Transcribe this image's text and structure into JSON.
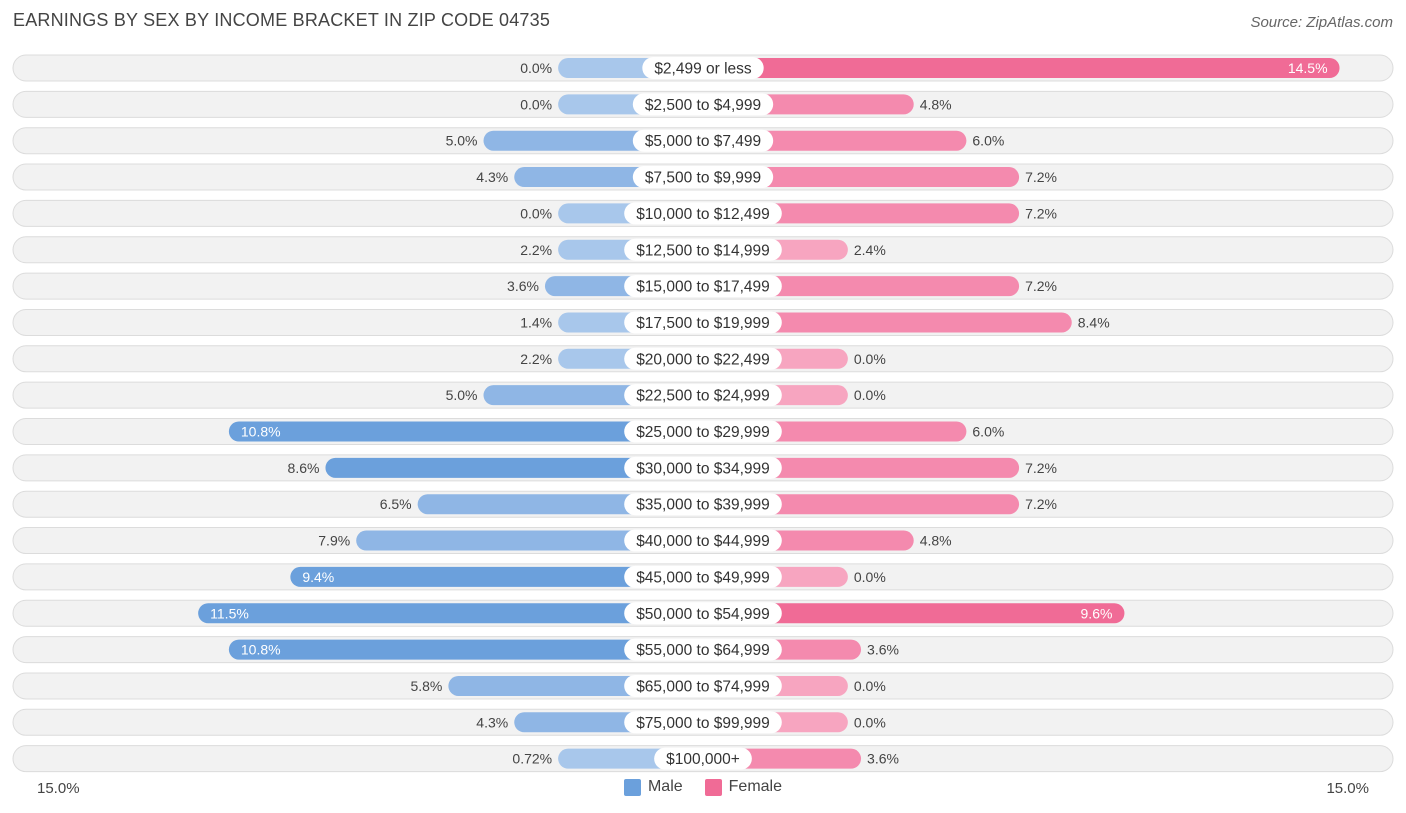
{
  "title": "EARNINGS BY SEX BY INCOME BRACKET IN ZIP CODE 04735",
  "source": "Source: ZipAtlas.com",
  "colors": {
    "male": "#6ba0dc",
    "male_light": "#a8c7eb",
    "female": "#f06b96",
    "female_light": "#f7a5c0"
  },
  "chart_data": {
    "type": "bar",
    "orientation": "horizontal-diverging",
    "categories": [
      "$2,499 or less",
      "$2,500 to $4,999",
      "$5,000 to $7,499",
      "$7,500 to $9,999",
      "$10,000 to $12,499",
      "$12,500 to $14,999",
      "$15,000 to $17,499",
      "$17,500 to $19,999",
      "$20,000 to $22,499",
      "$22,500 to $24,999",
      "$25,000 to $29,999",
      "$30,000 to $34,999",
      "$35,000 to $39,999",
      "$40,000 to $44,999",
      "$45,000 to $49,999",
      "$50,000 to $54,999",
      "$55,000 to $64,999",
      "$65,000 to $74,999",
      "$75,000 to $99,999",
      "$100,000+"
    ],
    "series": [
      {
        "name": "Male",
        "values": [
          0.0,
          0.0,
          5.0,
          4.3,
          0.0,
          2.2,
          3.6,
          1.4,
          2.2,
          5.0,
          10.8,
          8.6,
          6.5,
          7.9,
          9.4,
          11.5,
          10.8,
          5.8,
          4.3,
          0.72
        ],
        "labels": [
          "0.0%",
          "0.0%",
          "5.0%",
          "4.3%",
          "0.0%",
          "2.2%",
          "3.6%",
          "1.4%",
          "2.2%",
          "5.0%",
          "10.8%",
          "8.6%",
          "6.5%",
          "7.9%",
          "9.4%",
          "11.5%",
          "10.8%",
          "5.8%",
          "4.3%",
          "0.72%"
        ]
      },
      {
        "name": "Female",
        "values": [
          14.5,
          4.8,
          6.0,
          7.2,
          7.2,
          2.4,
          7.2,
          8.4,
          0.0,
          0.0,
          6.0,
          7.2,
          7.2,
          4.8,
          0.0,
          9.6,
          3.6,
          0.0,
          0.0,
          3.6
        ],
        "labels": [
          "14.5%",
          "4.8%",
          "6.0%",
          "7.2%",
          "7.2%",
          "2.4%",
          "7.2%",
          "8.4%",
          "0.0%",
          "0.0%",
          "6.0%",
          "7.2%",
          "7.2%",
          "4.8%",
          "0.0%",
          "9.6%",
          "3.6%",
          "0.0%",
          "0.0%",
          "3.6%"
        ]
      }
    ],
    "xlim": [
      -15.0,
      15.0
    ],
    "axis_labels": {
      "left": "15.0%",
      "right": "15.0%"
    },
    "legend": [
      "Male",
      "Female"
    ],
    "legend_position": "bottom-center"
  }
}
